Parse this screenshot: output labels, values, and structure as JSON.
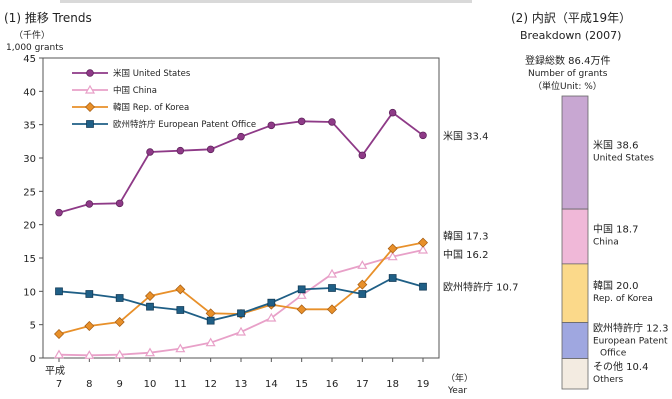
{
  "left_panel": {
    "title": "(1)  推移 Trends",
    "unit_line1": "（千件）",
    "unit_line2": "1,000 grants",
    "era_label": "平成",
    "year_unit_label": "（年）",
    "year_unit_en": "Year"
  },
  "right_panel": {
    "title": "(2)  内訳（平成19年）",
    "subtitle": "Breakdown (2007)",
    "total_line1": "登録総数 86.4万件",
    "total_line2": "Number of grants",
    "unit_line": "（単位Unit: %）"
  },
  "colors": {
    "us": "#8e3a87",
    "china": "#e8a0c8",
    "korea": "#e8902a",
    "epo": "#1f5f86",
    "seg_us": "#c8a7d2",
    "seg_china": "#f0b8d8",
    "seg_korea": "#fbd98a",
    "seg_epo": "#9fa7e0",
    "seg_others": "#f3ebe1"
  },
  "chart_data": [
    {
      "type": "line",
      "x": [
        7,
        8,
        9,
        10,
        11,
        12,
        13,
        14,
        15,
        16,
        17,
        18,
        19
      ],
      "ylim": [
        0,
        45
      ],
      "yticks": [
        0,
        5,
        10,
        15,
        20,
        25,
        30,
        35,
        40,
        45
      ],
      "series": [
        {
          "key": "us",
          "name": "米国 United States",
          "marker": "circle",
          "values": [
            21.8,
            23.1,
            23.2,
            30.9,
            31.1,
            31.3,
            33.2,
            34.9,
            35.5,
            35.4,
            30.4,
            36.8,
            33.4
          ],
          "end_label": "米国 33.4"
        },
        {
          "key": "china",
          "name": "中国 China",
          "marker": "triangle",
          "values": [
            0.5,
            0.4,
            0.5,
            0.8,
            1.4,
            2.3,
            3.9,
            6.0,
            9.4,
            12.6,
            13.9,
            15.2,
            16.2
          ],
          "end_label": "中国 16.2"
        },
        {
          "key": "korea",
          "name": "韓国 Rep. of Korea",
          "marker": "diamond",
          "values": [
            3.6,
            4.8,
            5.4,
            9.3,
            10.3,
            6.7,
            6.6,
            8.0,
            7.3,
            7.3,
            11.0,
            16.4,
            17.3
          ],
          "end_label": "韓国 17.3"
        },
        {
          "key": "epo",
          "name": "欧州特許庁 European Patent Office",
          "marker": "square",
          "values": [
            10.0,
            9.6,
            9.0,
            7.7,
            7.2,
            5.6,
            6.7,
            8.3,
            10.3,
            10.5,
            9.6,
            12.0,
            10.7
          ],
          "end_label": "欧州特許庁  10.7"
        }
      ]
    },
    {
      "type": "bar",
      "stacked": true,
      "unit": "%",
      "segments": [
        {
          "key": "seg_us",
          "value": 38.6,
          "label_jp": "米国 38.6",
          "label_en": "United States"
        },
        {
          "key": "seg_china",
          "value": 18.7,
          "label_jp": "中国 18.7",
          "label_en": "China"
        },
        {
          "key": "seg_korea",
          "value": 20.0,
          "label_jp": "韓国  20.0",
          "label_en": "Rep. of Korea"
        },
        {
          "key": "seg_epo",
          "value": 12.3,
          "label_jp": "欧州特許庁 12.3",
          "label_en": "European Patent",
          "label_en2": "Office"
        },
        {
          "key": "seg_others",
          "value": 10.4,
          "label_jp": "その他 10.4",
          "label_en": "Others"
        }
      ]
    }
  ]
}
